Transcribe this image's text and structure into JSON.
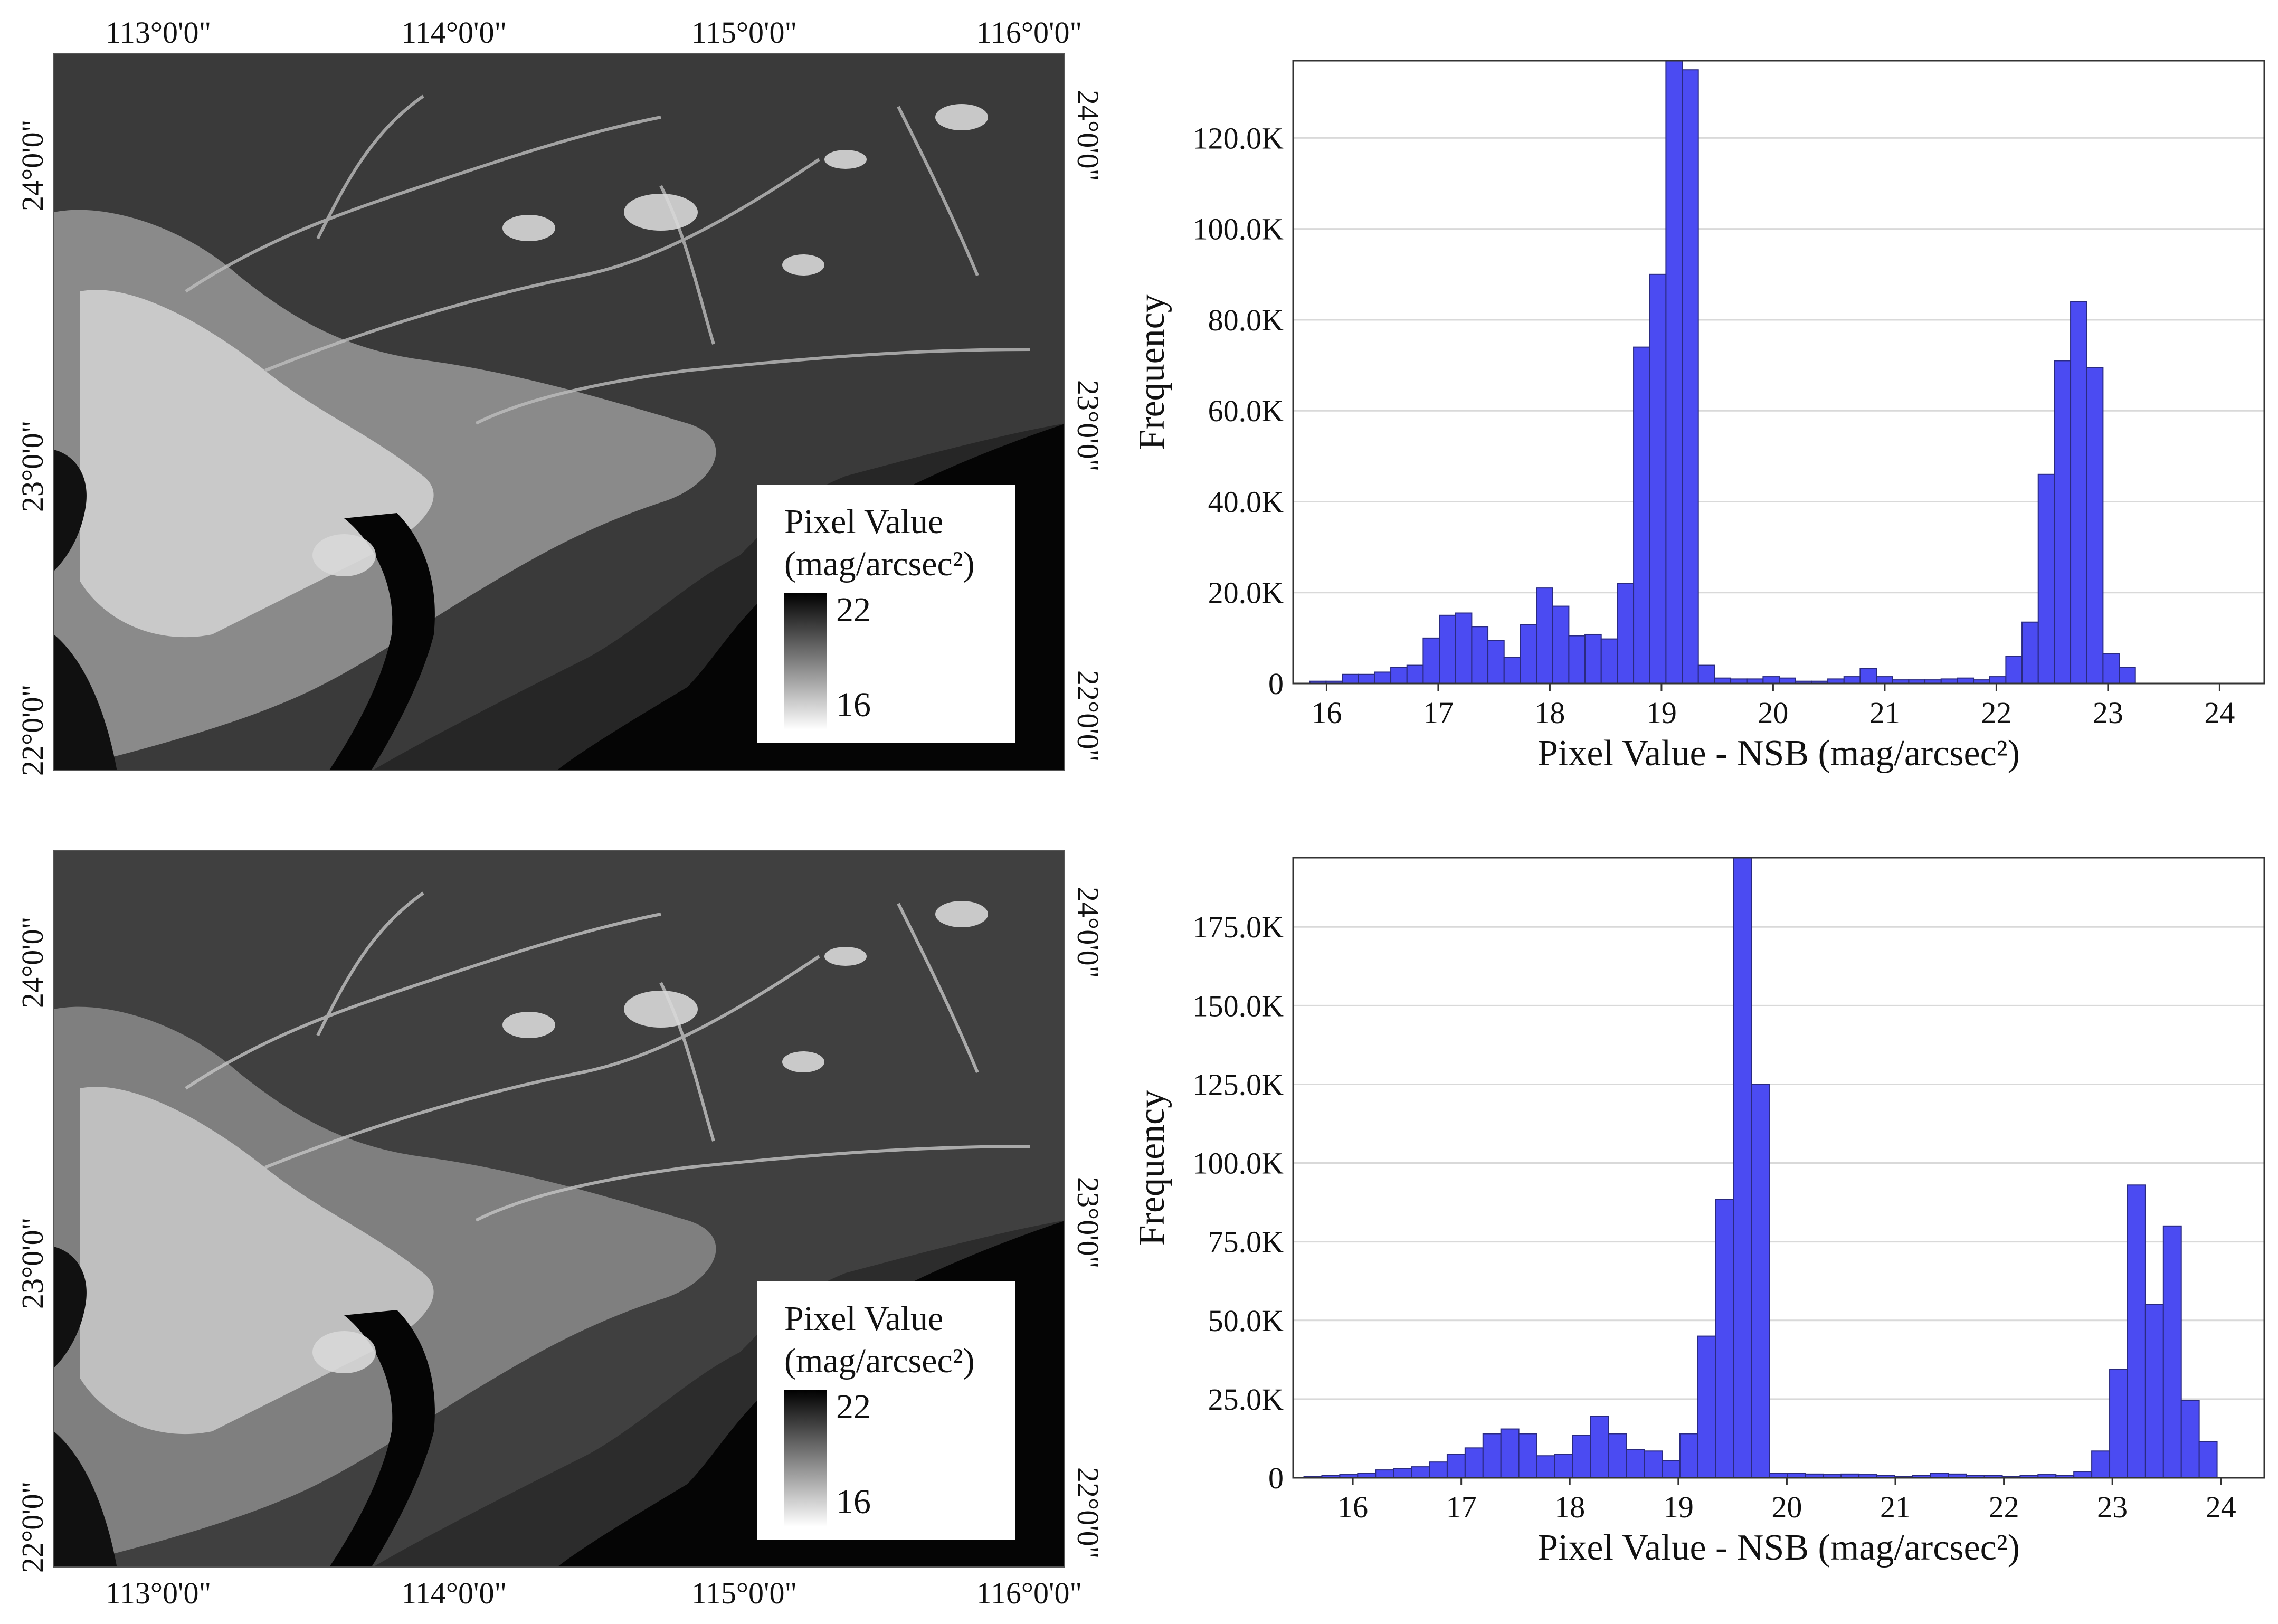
{
  "maps": [
    {
      "lon_labels": [
        "113°0'0\"",
        "114°0'0\"",
        "115°0'0\"",
        "116°0'0\""
      ],
      "lat_labels": [
        "24°0'0\"",
        "23°0'0\"",
        "22°0'0\""
      ],
      "legend": {
        "title_line1": "Pixel Value",
        "title_line2": "(mag/arcsec²)",
        "max": "22",
        "min": "16"
      }
    },
    {
      "lon_labels": [
        "113°0'0\"",
        "114°0'0\"",
        "115°0'0\"",
        "116°0'0\""
      ],
      "lat_labels": [
        "24°0'0\"",
        "23°0'0\"",
        "22°0'0\""
      ],
      "legend": {
        "title_line1": "Pixel Value",
        "title_line2": "(mag/arcsec²)",
        "max": "22",
        "min": "16"
      }
    }
  ],
  "chart_data": [
    {
      "type": "bar",
      "xlabel": "Pixel Value - NSB (mag/arcsec²)",
      "ylabel": "Frequency",
      "x_ticks": [
        "16",
        "17",
        "18",
        "19",
        "20",
        "21",
        "22",
        "23",
        "24"
      ],
      "y_ticks": [
        "0",
        "20.0K",
        "40.0K",
        "60.0K",
        "80.0K",
        "100.0K",
        "120.0K"
      ],
      "y_tick_values": [
        0,
        20000,
        40000,
        60000,
        80000,
        100000,
        120000
      ],
      "xlim": [
        15.7,
        24.4
      ],
      "ylim": [
        0,
        137000
      ],
      "bar_width": 0.145,
      "bar_color": "#4b4bf2",
      "grid": true,
      "bins_start": [
        15.85,
        15.995,
        16.14,
        16.285,
        16.43,
        16.575,
        16.72,
        16.865,
        17.01,
        17.155,
        17.3,
        17.445,
        17.59,
        17.735,
        17.88,
        18.025,
        18.17,
        18.315,
        18.46,
        18.605,
        18.75,
        18.895,
        19.04,
        19.185,
        19.33,
        19.475,
        19.62,
        19.765,
        19.91,
        20.055,
        20.2,
        20.345,
        20.49,
        20.635,
        20.78,
        20.925,
        21.07,
        21.215,
        21.36,
        21.505,
        21.65,
        21.795,
        21.94,
        22.085,
        22.23,
        22.375,
        22.52,
        22.665,
        22.81,
        22.955,
        23.1,
        23.245,
        23.39,
        23.535,
        23.68,
        23.825,
        23.97,
        24.115,
        24.26
      ],
      "values": [
        500,
        500,
        2000,
        2000,
        2500,
        3500,
        4000,
        10000,
        15000,
        15500,
        12500,
        9500,
        5800,
        13000,
        21000,
        17000,
        10500,
        10800,
        9800,
        22000,
        74000,
        90000,
        137000,
        135000,
        4000,
        1200,
        1000,
        1000,
        1500,
        1200,
        500,
        500,
        1000,
        1500,
        3300,
        1500,
        800,
        800,
        800,
        1000,
        1200,
        800,
        1500,
        6000,
        13500,
        46000,
        71000,
        84000,
        69500,
        6500,
        3500,
        0,
        0,
        0,
        0,
        0,
        0,
        0,
        0
      ]
    },
    {
      "type": "bar",
      "xlabel": "Pixel Value - NSB (mag/arcsec²)",
      "ylabel": "Frequency",
      "x_ticks": [
        "16",
        "17",
        "18",
        "19",
        "20",
        "21",
        "22",
        "23",
        "24"
      ],
      "y_ticks": [
        "0",
        "25.0K",
        "50.0K",
        "75.0K",
        "100.0K",
        "125.0K",
        "150.0K",
        "175.0K"
      ],
      "y_tick_values": [
        0,
        25000,
        50000,
        75000,
        100000,
        125000,
        150000,
        175000
      ],
      "xlim": [
        15.45,
        24.4
      ],
      "ylim": [
        0,
        197000
      ],
      "bar_width": 0.165,
      "bar_color": "#4b4bf2",
      "grid": true,
      "bins_start": [
        15.55,
        15.715,
        15.88,
        16.045,
        16.21,
        16.375,
        16.54,
        16.705,
        16.87,
        17.035,
        17.2,
        17.365,
        17.53,
        17.695,
        17.86,
        18.025,
        18.19,
        18.355,
        18.52,
        18.685,
        18.85,
        19.015,
        19.18,
        19.345,
        19.51,
        19.675,
        19.84,
        20.005,
        20.17,
        20.335,
        20.5,
        20.665,
        20.83,
        20.995,
        21.16,
        21.325,
        21.49,
        21.655,
        21.82,
        21.985,
        22.15,
        22.315,
        22.48,
        22.645,
        22.81,
        22.975,
        23.14,
        23.305,
        23.47,
        23.635,
        23.8,
        23.965,
        24.13
      ],
      "values": [
        500,
        800,
        1000,
        1500,
        2500,
        3000,
        3500,
        5000,
        7500,
        9500,
        14000,
        15500,
        14000,
        7000,
        7500,
        13500,
        19500,
        14000,
        9000,
        8500,
        5500,
        14000,
        45000,
        88500,
        197000,
        125000,
        1500,
        1500,
        1200,
        1000,
        1200,
        1000,
        800,
        500,
        800,
        1500,
        1200,
        800,
        800,
        500,
        800,
        1000,
        800,
        2000,
        8500,
        34500,
        93000,
        55000,
        80000,
        24500,
        11500,
        0,
        0
      ]
    }
  ]
}
